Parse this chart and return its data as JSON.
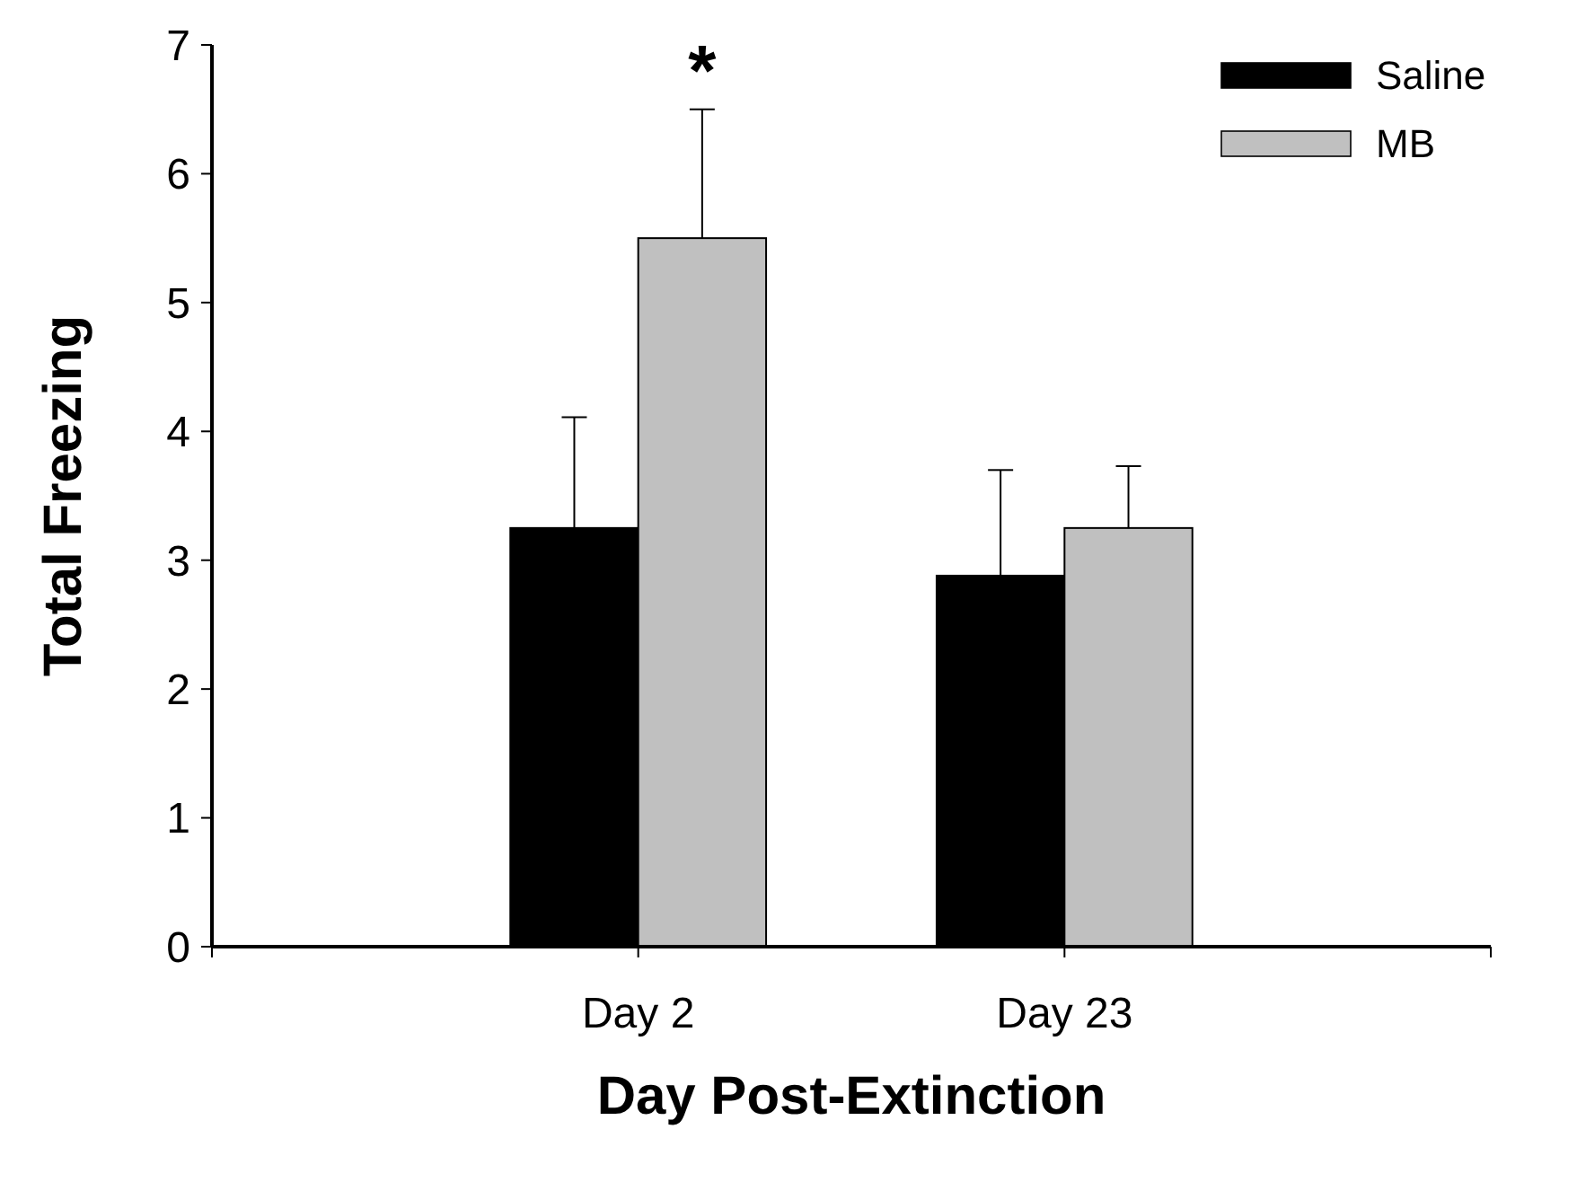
{
  "chart_data": {
    "type": "bar",
    "xlabel": "Day Post-Extinction",
    "ylabel": "Total Freezing",
    "categories": [
      "Day 2",
      "Day 23"
    ],
    "series": [
      {
        "name": "Saline",
        "color": "#000000",
        "values": [
          3.25,
          2.88
        ],
        "errors": [
          0.86,
          0.82
        ]
      },
      {
        "name": "MB",
        "color": "#c0c0c0",
        "values": [
          5.5,
          3.25
        ],
        "errors": [
          1.0,
          0.48
        ]
      }
    ],
    "ylim": [
      0,
      7
    ],
    "yticks": [
      0,
      1,
      2,
      3,
      4,
      5,
      6,
      7
    ],
    "legend": "top right",
    "annotations": [
      "*"
    ]
  }
}
